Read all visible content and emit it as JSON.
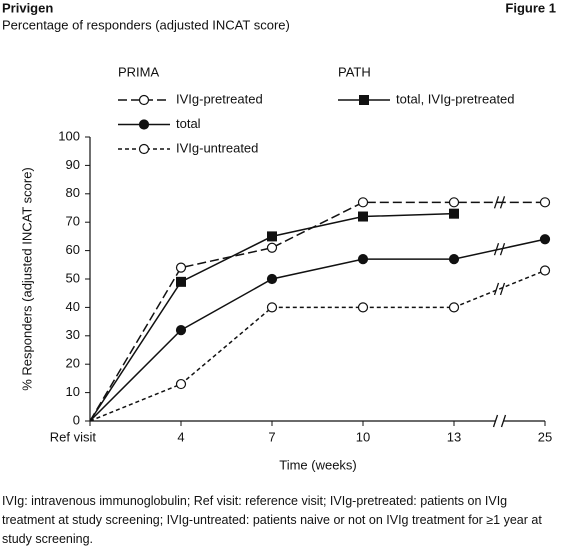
{
  "chart_data": {
    "type": "line",
    "title": "Privigen",
    "figure_label": "Figure 1",
    "subtitle": "Percentage of responders (adjusted INCAT score)",
    "legend_headers": [
      "PRIMA",
      "PATH"
    ],
    "y_label": "% Responders (adjusted INCAT score)",
    "x_label": "Time (weeks)",
    "categories": [
      "Ref visit",
      "4",
      "7",
      "10",
      "13",
      "25"
    ],
    "ylim": [
      0,
      100
    ],
    "yticks": [
      0,
      10,
      20,
      30,
      40,
      50,
      60,
      70,
      80,
      90,
      100
    ],
    "axis_break": true,
    "series": [
      {
        "name": "IVIg-pretreated",
        "color": "#111111",
        "dash": "9 4",
        "marker": "open-circle",
        "values": [
          0,
          54,
          61,
          77,
          77,
          77
        ]
      },
      {
        "name": "total",
        "color": "#111111",
        "dash": "none",
        "marker": "filled-circle",
        "values": [
          0,
          32,
          50,
          57,
          57,
          64
        ]
      },
      {
        "name": "IVIg-untreated",
        "color": "#111111",
        "dash": "4 3",
        "marker": "open-circle",
        "values": [
          0,
          13,
          40,
          40,
          40,
          53
        ]
      },
      {
        "name": "total, IVIg-pretreated",
        "color": "#111111",
        "dash": "none",
        "marker": "filled-square",
        "values": [
          0,
          49,
          65,
          72,
          73,
          null
        ]
      }
    ],
    "footnote": "IVIg: intravenous immunoglobulin; Ref visit: reference visit; IVIg-pretreated: patients on IVIg treatment at study screening; IVIg-untreated: patients naive or not on IVIg treatment for ≥1 year at study screening."
  }
}
